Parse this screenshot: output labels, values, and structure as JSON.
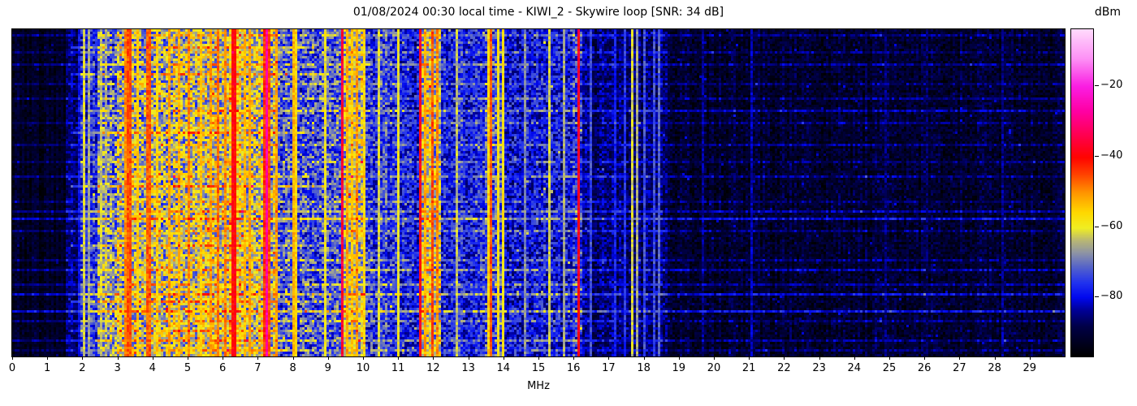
{
  "title": "01/08/2024 00:30 local time - KIWI_2 - Skywire loop [SNR: 34 dB]",
  "colorbar": {
    "label": "dBm",
    "vmin": -97,
    "vmax": -4,
    "ticks": [
      {
        "value": -20,
        "label": "−20"
      },
      {
        "value": -40,
        "label": "−40"
      },
      {
        "value": -60,
        "label": "−60"
      },
      {
        "value": -80,
        "label": "−80"
      }
    ],
    "gradient_stops": [
      {
        "t": 0.0,
        "c": "#000000"
      },
      {
        "t": 0.09,
        "c": "#000046"
      },
      {
        "t": 0.14,
        "c": "#000096"
      },
      {
        "t": 0.179,
        "c": "#0008ee"
      },
      {
        "t": 0.225,
        "c": "#2233ee"
      },
      {
        "t": 0.275,
        "c": "#5866c8"
      },
      {
        "t": 0.315,
        "c": "#8d93a6"
      },
      {
        "t": 0.355,
        "c": "#bab873"
      },
      {
        "t": 0.392,
        "c": "#f0ee22"
      },
      {
        "t": 0.44,
        "c": "#ffd800"
      },
      {
        "t": 0.5,
        "c": "#ff9500"
      },
      {
        "t": 0.555,
        "c": "#ff4400"
      },
      {
        "t": 0.608,
        "c": "#ff0400"
      },
      {
        "t": 0.67,
        "c": "#ff0048"
      },
      {
        "t": 0.75,
        "c": "#ff00a4"
      },
      {
        "t": 0.826,
        "c": "#fa1ee2"
      },
      {
        "t": 0.91,
        "c": "#fd90f5"
      },
      {
        "t": 1.0,
        "c": "#ffdafc"
      }
    ]
  },
  "x_axis": {
    "label": "MHz",
    "min": 0,
    "max": 30,
    "ticks": [
      0,
      1,
      2,
      3,
      4,
      5,
      6,
      7,
      8,
      9,
      10,
      11,
      12,
      13,
      14,
      15,
      16,
      17,
      18,
      19,
      20,
      21,
      22,
      23,
      24,
      25,
      26,
      27,
      28,
      29
    ]
  },
  "chart_data": {
    "type": "heatmap",
    "title": "01/08/2024 00:30 local time - KIWI_2 - Skywire loop [SNR: 34 dB]",
    "station": "KIWI_2",
    "antenna": "Skywire loop",
    "snr_db": 34,
    "datetime_local": "01/08/2024 00:30",
    "x_axis": "Frequency in MHz, 0 to 30",
    "y_axis": "Time (waterfall rows, unlabeled)",
    "value_axis": "Received power in dBm, colour scale approx -97 (black) to -4 (white-pink)",
    "bands": [
      [
        0.0,
        1.55,
        -93,
        3,
        0
      ],
      [
        1.55,
        1.95,
        -87,
        4.5,
        1
      ],
      [
        1.95,
        2.45,
        -80,
        8,
        4
      ],
      [
        2.45,
        3.0,
        -73,
        11,
        5
      ],
      [
        3.0,
        4.6,
        -68,
        12,
        5
      ],
      [
        4.6,
        6.2,
        -64,
        12,
        2
      ],
      [
        6.2,
        6.55,
        -58,
        10,
        1
      ],
      [
        6.55,
        7.6,
        -64,
        12,
        1
      ],
      [
        7.6,
        9.35,
        -74,
        10,
        0
      ],
      [
        9.35,
        10.05,
        -64,
        11,
        0
      ],
      [
        10.05,
        11.0,
        -76,
        9,
        0
      ],
      [
        11.0,
        11.58,
        -79,
        8,
        0
      ],
      [
        11.58,
        12.2,
        -64,
        11,
        0
      ],
      [
        12.2,
        13.45,
        -78,
        8,
        0
      ],
      [
        13.45,
        14.05,
        -73,
        10,
        0
      ],
      [
        14.05,
        16.0,
        -80,
        8,
        0
      ],
      [
        16.0,
        16.25,
        -76,
        9,
        0
      ],
      [
        16.25,
        18.65,
        -86,
        5.5,
        0
      ],
      [
        18.65,
        30.01,
        -91.5,
        4.5,
        0
      ]
    ],
    "carriers": [
      [
        1.94,
        -80,
        1
      ],
      [
        2.06,
        -62,
        1
      ],
      [
        2.21,
        -66,
        1
      ],
      [
        2.5,
        -63,
        1
      ],
      [
        2.65,
        -68,
        1
      ],
      [
        3.2,
        -50,
        1
      ],
      [
        3.33,
        -46,
        2
      ],
      [
        3.6,
        -55,
        1
      ],
      [
        3.85,
        -47,
        2
      ],
      [
        4.1,
        -56,
        1
      ],
      [
        4.47,
        -52,
        1
      ],
      [
        4.77,
        -53,
        1
      ],
      [
        5.0,
        -50,
        1
      ],
      [
        5.4,
        -55,
        1
      ],
      [
        5.68,
        -52,
        1
      ],
      [
        5.9,
        -48,
        1
      ],
      [
        6.07,
        -50,
        1
      ],
      [
        6.27,
        -40,
        2
      ],
      [
        6.6,
        -54,
        1
      ],
      [
        6.8,
        -52,
        1
      ],
      [
        7.18,
        -44,
        1
      ],
      [
        7.24,
        -27,
        1
      ],
      [
        7.35,
        -46,
        1
      ],
      [
        7.5,
        -52,
        1
      ],
      [
        8.0,
        -53,
        1
      ],
      [
        8.12,
        -56,
        1
      ],
      [
        8.9,
        -60,
        1
      ],
      [
        9.41,
        -36,
        1
      ],
      [
        9.58,
        -52,
        1
      ],
      [
        9.7,
        -55,
        1
      ],
      [
        9.86,
        -51,
        1
      ],
      [
        10.0,
        -57,
        1
      ],
      [
        10.45,
        -62,
        1
      ],
      [
        11.02,
        -60,
        1
      ],
      [
        11.63,
        -39,
        1
      ],
      [
        11.8,
        -52,
        1
      ],
      [
        11.95,
        -46,
        1
      ],
      [
        12.1,
        -50,
        1
      ],
      [
        12.65,
        -64,
        1
      ],
      [
        13.57,
        -56,
        1
      ],
      [
        13.66,
        -46,
        1
      ],
      [
        13.87,
        -58,
        1
      ],
      [
        14.0,
        -58,
        1
      ],
      [
        14.6,
        -68,
        1
      ],
      [
        15.3,
        -62,
        1
      ],
      [
        15.75,
        -66,
        1
      ],
      [
        16.15,
        -38,
        1
      ],
      [
        16.46,
        -74,
        1
      ],
      [
        17.2,
        -78,
        1
      ],
      [
        17.45,
        -76,
        1
      ],
      [
        17.66,
        -62,
        1
      ],
      [
        17.82,
        -66,
        1
      ],
      [
        18.02,
        -74,
        1
      ],
      [
        18.3,
        -74,
        1
      ],
      [
        18.45,
        -72,
        1
      ],
      [
        19.7,
        -85,
        1
      ],
      [
        21.06,
        -83,
        1
      ],
      [
        24.9,
        -86,
        1
      ],
      [
        26.05,
        -87,
        1
      ],
      [
        28.2,
        -85,
        1
      ]
    ],
    "time_events": [
      [
        0.012,
        6,
        0,
        30
      ],
      [
        0.05,
        10,
        1.6,
        8.6
      ],
      [
        0.065,
        5,
        0,
        30
      ],
      [
        0.105,
        7,
        0,
        30
      ],
      [
        0.135,
        11,
        1.6,
        9.0
      ],
      [
        0.165,
        5,
        0,
        30
      ],
      [
        0.21,
        6,
        0,
        30
      ],
      [
        0.245,
        8,
        1.8,
        30
      ],
      [
        0.285,
        5,
        0,
        30
      ],
      [
        0.315,
        10,
        1.6,
        8.6
      ],
      [
        0.35,
        6,
        0,
        30
      ],
      [
        0.4,
        5,
        0,
        30
      ],
      [
        0.445,
        7,
        0,
        30
      ],
      [
        0.475,
        11,
        1.6,
        9.0
      ],
      [
        0.525,
        5,
        0,
        30
      ],
      [
        0.555,
        8,
        0,
        30
      ],
      [
        0.578,
        11,
        0,
        30
      ],
      [
        0.615,
        6,
        0,
        30
      ],
      [
        0.655,
        9,
        1.6,
        8.6
      ],
      [
        0.7,
        6,
        0,
        30
      ],
      [
        0.735,
        8,
        0,
        30
      ],
      [
        0.775,
        7,
        0,
        30
      ],
      [
        0.805,
        11,
        0,
        30
      ],
      [
        0.83,
        10,
        1.6,
        9.0
      ],
      [
        0.858,
        12,
        0,
        30
      ],
      [
        0.885,
        6,
        0,
        30
      ],
      [
        0.915,
        9,
        1.6,
        8.6
      ],
      [
        0.947,
        7,
        0,
        30
      ],
      [
        0.978,
        5,
        0,
        30
      ]
    ]
  }
}
